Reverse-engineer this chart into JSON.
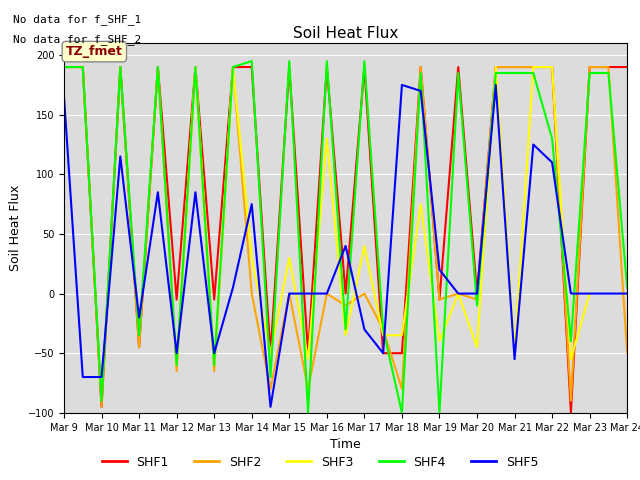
{
  "title": "Soil Heat Flux",
  "ylabel": "Soil Heat Flux",
  "xlabel": "Time",
  "ylim": [
    -100,
    210
  ],
  "yticks": [
    -100,
    -50,
    0,
    50,
    100,
    150,
    200
  ],
  "annotation_lines": [
    "No data for f_SHF_1",
    "No data for f_SHF_2"
  ],
  "legend_label_box": "TZ_fmet",
  "legend_box_color": "#ffffcc",
  "legend_box_text_color": "#8b0000",
  "background_color": "#dcdcdc",
  "series": {
    "SHF1": {
      "color": "red",
      "x": [
        9,
        9.5,
        10,
        10.5,
        11,
        11.5,
        12,
        12.5,
        13,
        13.5,
        14,
        14.5,
        15,
        15.5,
        16,
        16.5,
        17,
        17.5,
        18,
        18.5,
        19,
        19.5,
        20,
        20.5,
        21,
        21.5,
        22,
        22.5,
        23,
        23.5,
        24
      ],
      "y": [
        190,
        190,
        -95,
        190,
        -45,
        190,
        -5,
        190,
        -5,
        190,
        190,
        -50,
        190,
        -50,
        190,
        0,
        190,
        -50,
        -50,
        190,
        -5,
        190,
        0,
        190,
        190,
        190,
        190,
        -100,
        190,
        190,
        190
      ]
    },
    "SHF2": {
      "color": "orange",
      "x": [
        9,
        9.5,
        10,
        10.5,
        11,
        11.5,
        12,
        12.5,
        13,
        13.5,
        14,
        14.5,
        15,
        15.5,
        16,
        16.5,
        17,
        17.5,
        18,
        18.5,
        19,
        19.5,
        20,
        20.5,
        21,
        21.5,
        22,
        22.5,
        23,
        23.5,
        24
      ],
      "y": [
        190,
        190,
        -95,
        190,
        -45,
        190,
        -65,
        190,
        -65,
        190,
        0,
        -80,
        0,
        -80,
        0,
        -10,
        0,
        -30,
        -80,
        190,
        -5,
        0,
        -5,
        190,
        190,
        190,
        190,
        -90,
        190,
        190,
        -50
      ]
    },
    "SHF3": {
      "color": "yellow",
      "x": [
        12,
        12.5,
        13,
        13.5,
        14,
        14.5,
        15,
        15.5,
        16,
        16.5,
        17,
        17.5,
        18,
        18.5,
        19,
        19.5,
        20,
        20.5,
        21,
        21.5,
        22,
        22.5,
        23
      ],
      "y": [
        -60,
        190,
        -60,
        190,
        30,
        -50,
        30,
        -55,
        130,
        -35,
        40,
        -35,
        -35,
        75,
        -40,
        0,
        -45,
        190,
        -50,
        190,
        190,
        -55,
        0
      ]
    },
    "SHF4": {
      "color": "lime",
      "x": [
        9,
        9.5,
        10,
        10.5,
        11,
        11.5,
        12,
        12.5,
        13,
        13.5,
        14,
        14.5,
        15,
        15.5,
        16,
        16.5,
        17,
        17.5,
        18,
        18.5,
        19,
        19.5,
        20,
        20.5,
        21,
        21.5,
        22,
        22.5,
        23,
        23.5,
        24
      ],
      "y": [
        190,
        190,
        -90,
        190,
        -35,
        190,
        -60,
        190,
        -60,
        190,
        195,
        -70,
        195,
        -100,
        195,
        -30,
        195,
        -30,
        -100,
        185,
        -100,
        185,
        -10,
        185,
        185,
        185,
        130,
        -40,
        185,
        185,
        5
      ]
    },
    "SHF5": {
      "color": "blue",
      "x": [
        9,
        9.5,
        10,
        10.5,
        11,
        11.5,
        12,
        12.5,
        13,
        13.5,
        14,
        14.5,
        15,
        15.5,
        16,
        16.5,
        17,
        17.5,
        18,
        18.5,
        19,
        19.5,
        20,
        20.5,
        21,
        21.5,
        22,
        22.5,
        23,
        23.5,
        24
      ],
      "y": [
        165,
        -70,
        -70,
        115,
        -20,
        85,
        -50,
        85,
        -50,
        5,
        75,
        -95,
        0,
        0,
        0,
        40,
        -30,
        -50,
        175,
        170,
        20,
        0,
        0,
        175,
        -55,
        125,
        110,
        0,
        0,
        0,
        0
      ]
    }
  },
  "xtick_positions": [
    9,
    10,
    11,
    12,
    13,
    14,
    15,
    16,
    17,
    18,
    19,
    20,
    21,
    22,
    23,
    24
  ],
  "xtick_labels": [
    "Mar 9",
    "Mar 10",
    "Mar 11",
    "Mar 12",
    "Mar 13",
    "Mar 14",
    "Mar 15",
    "Mar 16",
    "Mar 17",
    "Mar 18",
    "Mar 19",
    "Mar 20",
    "Mar 21",
    "Mar 22",
    "Mar 23",
    "Mar 24"
  ],
  "legend_names": [
    "SHF1",
    "SHF2",
    "SHF3",
    "SHF4",
    "SHF5"
  ],
  "legend_colors": [
    "red",
    "orange",
    "yellow",
    "lime",
    "blue"
  ]
}
